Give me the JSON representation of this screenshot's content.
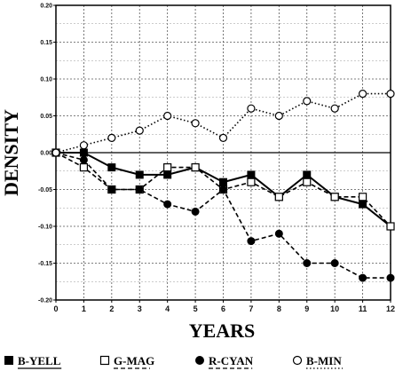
{
  "chart_data": {
    "type": "line",
    "xlabel": "YEARS",
    "ylabel": "DENSITY",
    "xlim": [
      0,
      12
    ],
    "ylim": [
      -0.2,
      0.2
    ],
    "x": [
      0,
      1,
      2,
      3,
      4,
      5,
      6,
      7,
      8,
      9,
      10,
      11,
      12
    ],
    "x_ticks": [
      "0",
      "1",
      "2",
      "3",
      "4",
      "5",
      "6",
      "7",
      "8",
      "9",
      "10",
      "11",
      "12"
    ],
    "y_ticks": [
      "0.20",
      "0.15",
      "0.10",
      "0.05",
      "0.00",
      "-0.05",
      "-0.10",
      "-0.15",
      "-0.20"
    ],
    "y_tick_values": [
      0.2,
      0.15,
      0.1,
      0.05,
      0.0,
      -0.05,
      -0.1,
      -0.15,
      -0.2
    ],
    "grid": true,
    "legend_position": "bottom",
    "series": [
      {
        "name": "B-YELL",
        "marker": "filled-square",
        "line": "solid",
        "values": [
          0.0,
          0.0,
          -0.02,
          -0.03,
          -0.03,
          -0.02,
          -0.04,
          -0.03,
          -0.06,
          -0.03,
          -0.06,
          -0.07,
          -0.1
        ]
      },
      {
        "name": "G-MAG",
        "marker": "open-square",
        "line": "dashed",
        "values": [
          0.0,
          -0.02,
          -0.05,
          -0.05,
          -0.02,
          -0.02,
          -0.05,
          -0.04,
          -0.06,
          -0.04,
          -0.06,
          -0.06,
          -0.1
        ]
      },
      {
        "name": "R-CYAN",
        "marker": "filled-circle",
        "line": "dashed",
        "values": [
          0.0,
          -0.01,
          -0.05,
          -0.05,
          -0.07,
          -0.08,
          -0.05,
          -0.12,
          -0.11,
          -0.15,
          -0.15,
          -0.17,
          -0.17
        ]
      },
      {
        "name": "B-MIN",
        "marker": "open-circle",
        "line": "dotted",
        "values": [
          0.0,
          0.01,
          0.02,
          0.03,
          0.05,
          0.04,
          0.02,
          0.06,
          0.05,
          0.07,
          0.06,
          0.08,
          0.08
        ]
      }
    ]
  }
}
